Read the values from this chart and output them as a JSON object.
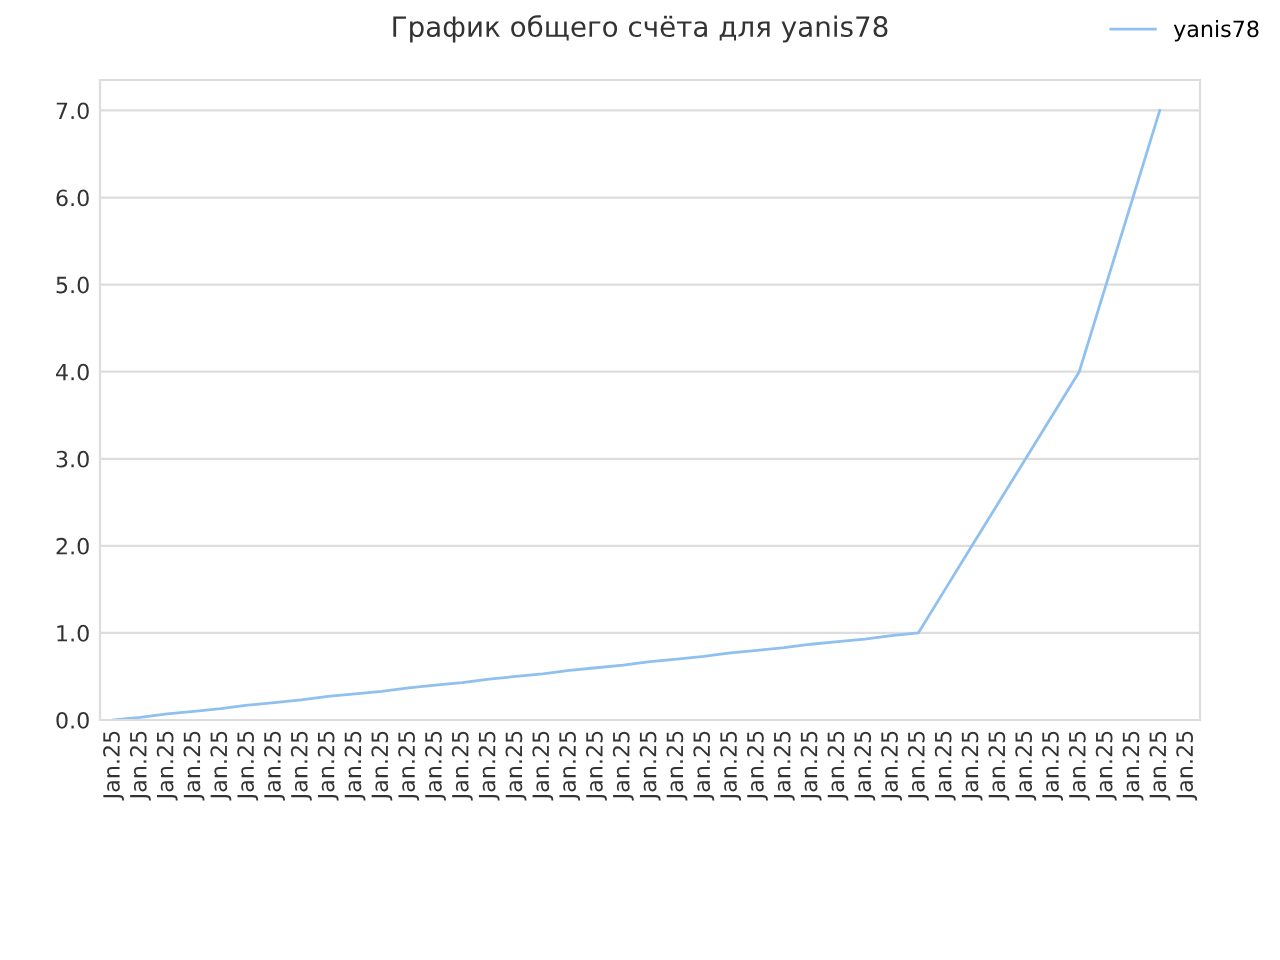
{
  "chart_data": {
    "type": "line",
    "title": "График общего счёта для yanis78",
    "categories": [
      "Jan.25",
      "Jan.25",
      "Jan.25",
      "Jan.25",
      "Jan.25",
      "Jan.25",
      "Jan.25",
      "Jan.25",
      "Jan.25",
      "Jan.25",
      "Jan.25",
      "Jan.25",
      "Jan.25",
      "Jan.25",
      "Jan.25",
      "Jan.25",
      "Jan.25",
      "Jan.25",
      "Jan.25",
      "Jan.25",
      "Jan.25",
      "Jan.25",
      "Jan.25",
      "Jan.25",
      "Jan.25",
      "Jan.25",
      "Jan.25",
      "Jan.25",
      "Jan.25",
      "Jan.25",
      "Jan.25",
      "Jan.25",
      "Jan.25",
      "Jan.25",
      "Jan.25",
      "Jan.25",
      "Jan.25",
      "Jan.25",
      "Jan.25",
      "Jan.25",
      "Jan.25"
    ],
    "series": [
      {
        "name": "yanis78",
        "color": "#90c0f0",
        "values": [
          0,
          0.03,
          0.07,
          0.1,
          0.13,
          0.17,
          0.2,
          0.23,
          0.27,
          0.3,
          0.33,
          0.37,
          0.4,
          0.43,
          0.47,
          0.5,
          0.53,
          0.57,
          0.6,
          0.63,
          0.67,
          0.7,
          0.73,
          0.77,
          0.8,
          0.83,
          0.87,
          0.9,
          0.93,
          0.97,
          1.0,
          1.5,
          2.0,
          2.5,
          3.0,
          3.5,
          4.0,
          5.0,
          6.0,
          7.0,
          null
        ]
      }
    ],
    "ylim": [
      0,
      7.35
    ],
    "yticks": [
      {
        "value": 0,
        "label": "0.0"
      },
      {
        "value": 1,
        "label": "1.0"
      },
      {
        "value": 2,
        "label": "2.0"
      },
      {
        "value": 3,
        "label": "3.0"
      },
      {
        "value": 4,
        "label": "4.0"
      },
      {
        "value": 5,
        "label": "5.0"
      },
      {
        "value": 6,
        "label": "6.0"
      },
      {
        "value": 7,
        "label": "7.0"
      }
    ],
    "grid": "y",
    "legend": "top right",
    "marker": "none",
    "line_style": "solid"
  }
}
